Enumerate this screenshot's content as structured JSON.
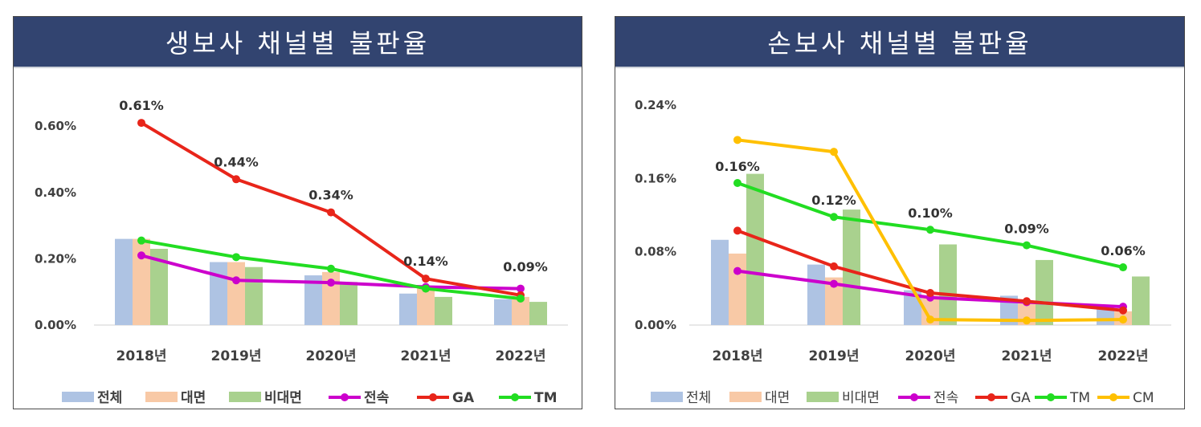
{
  "panels": [
    {
      "title": "생보사  채널별  불판율"
    },
    {
      "title": "손보사  채널별  불판율"
    }
  ],
  "colors": {
    "전체": "#aec3e3",
    "대면": "#f8c9a6",
    "비대면": "#a9d18e",
    "전속": "#cc00cc",
    "GA": "#e8251a",
    "TM": "#22dd22",
    "CM": "#ffc000",
    "banner": "#324470"
  },
  "chart_data": [
    {
      "type": "bar",
      "title": "생보사  채널별  불판율",
      "categories": [
        "2018년",
        "2019년",
        "2020년",
        "2021년",
        "2022년"
      ],
      "yticks": [
        "0.00%",
        "0.20%",
        "0.40%",
        "0.60%"
      ],
      "ylim": [
        0,
        0.0066
      ],
      "grid": false,
      "legend_position": "bottom",
      "bar_series": [
        {
          "name": "전체",
          "values": [
            0.0026,
            0.0019,
            0.0015,
            0.00095,
            0.00078
          ]
        },
        {
          "name": "대면",
          "values": [
            0.0026,
            0.0019,
            0.0016,
            0.0011,
            0.00085
          ]
        },
        {
          "name": "비대면",
          "values": [
            0.0023,
            0.00175,
            0.0013,
            0.00085,
            0.0007
          ]
        }
      ],
      "line_series": [
        {
          "name": "전속",
          "values": [
            0.0021,
            0.00135,
            0.00128,
            0.00115,
            0.0011
          ]
        },
        {
          "name": "GA",
          "values": [
            0.0061,
            0.0044,
            0.0034,
            0.0014,
            0.0009
          ]
        },
        {
          "name": "TM",
          "values": [
            0.00255,
            0.00205,
            0.0017,
            0.0011,
            0.0008
          ]
        }
      ],
      "data_labels": {
        "series": "GA",
        "labels": [
          "0.61%",
          "0.44%",
          "0.34%",
          "0.14%",
          "0.09%"
        ]
      },
      "legend": [
        "전체",
        "대면",
        "비대면",
        "전속",
        "GA",
        "TM"
      ]
    },
    {
      "type": "bar",
      "title": "손보사  채널별  불판율",
      "categories": [
        "2018년",
        "2019년",
        "2020년",
        "2021년",
        "2022년"
      ],
      "yticks": [
        "0.00%",
        "0.08%",
        "0.16%",
        "0.24%"
      ],
      "ylim": [
        0,
        0.0024
      ],
      "grid": false,
      "legend_position": "bottom",
      "bar_series": [
        {
          "name": "전체",
          "values": [
            0.00093,
            0.00066,
            0.00038,
            0.00032,
            0.00022
          ]
        },
        {
          "name": "대면",
          "values": [
            0.00078,
            0.00052,
            0.00032,
            0.00026,
            0.00015
          ]
        },
        {
          "name": "비대면",
          "values": [
            0.00165,
            0.00126,
            0.00088,
            0.00071,
            0.00053
          ]
        }
      ],
      "line_series": [
        {
          "name": "전속",
          "values": [
            0.00059,
            0.00045,
            0.0003,
            0.00025,
            0.0002
          ]
        },
        {
          "name": "GA",
          "values": [
            0.00103,
            0.00064,
            0.00035,
            0.00026,
            0.00016
          ]
        },
        {
          "name": "TM",
          "values": [
            0.00155,
            0.00118,
            0.00104,
            0.00087,
            0.00063
          ]
        },
        {
          "name": "CM",
          "values": [
            0.00202,
            0.00189,
            6e-05,
            5e-05,
            6e-05
          ]
        }
      ],
      "data_labels": {
        "series": "TM",
        "labels": [
          "0.16%",
          "0.12%",
          "0.10%",
          "0.09%",
          "0.06%"
        ]
      },
      "legend": [
        "전체",
        "대면",
        "비대면",
        "전속",
        "GA",
        "TM",
        "CM"
      ]
    }
  ]
}
